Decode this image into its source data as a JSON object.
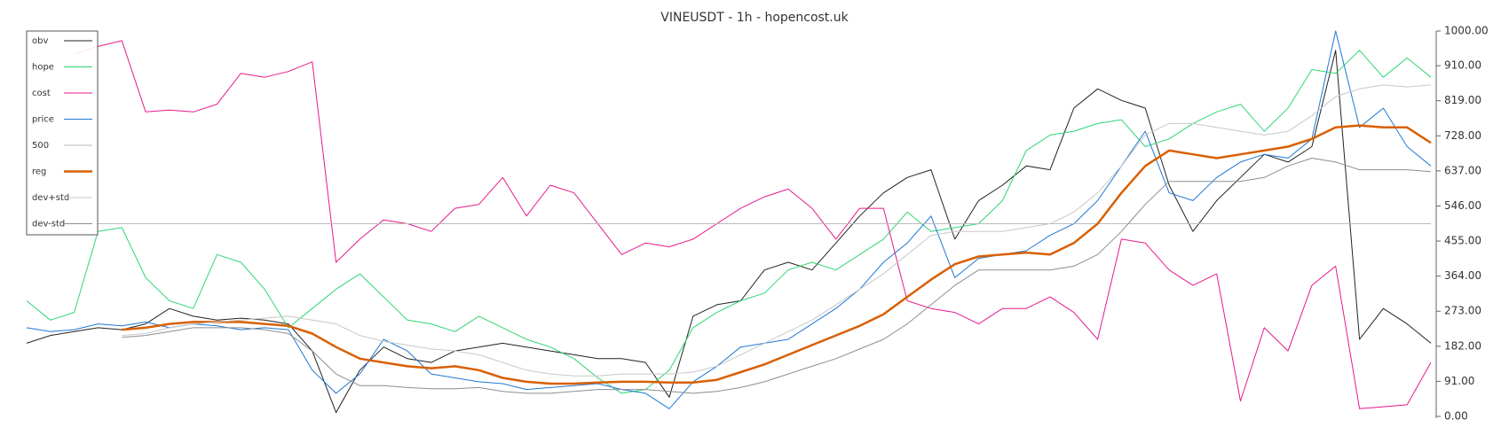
{
  "chart_data": {
    "type": "line",
    "title": "VINEUSDT - 1h - hopencost.uk",
    "ylim": [
      0,
      1000
    ],
    "yticks": [
      {
        "value": 0,
        "label": "0.00"
      },
      {
        "value": 91,
        "label": "91.00"
      },
      {
        "value": 182,
        "label": "182.00"
      },
      {
        "value": 273,
        "label": "273.00"
      },
      {
        "value": 364,
        "label": "364.00"
      },
      {
        "value": 455,
        "label": "455.00"
      },
      {
        "value": 546,
        "label": "546.00"
      },
      {
        "value": 637,
        "label": "637.00"
      },
      {
        "value": 728,
        "label": "728.00"
      },
      {
        "value": 819,
        "label": "819.00"
      },
      {
        "value": 910,
        "label": "910.00"
      },
      {
        "value": 1000,
        "label": "1000.00"
      }
    ],
    "grid": false,
    "legend": "upper left",
    "series": [
      {
        "name": "obv",
        "color": "#222222",
        "width": 1,
        "values": [
          190,
          210,
          220,
          230,
          225,
          240,
          280,
          260,
          250,
          255,
          250,
          240,
          170,
          10,
          120,
          180,
          150,
          140,
          170,
          180,
          190,
          180,
          170,
          160,
          150,
          150,
          140,
          50,
          260,
          290,
          300,
          380,
          400,
          380,
          450,
          520,
          580,
          620,
          640,
          460,
          560,
          600,
          650,
          640,
          800,
          850,
          820,
          800,
          600,
          480,
          560,
          620,
          680,
          660,
          700,
          950,
          200,
          280,
          240,
          190
        ]
      },
      {
        "name": "hope",
        "color": "#2fd675",
        "width": 1,
        "values": [
          300,
          250,
          270,
          480,
          490,
          360,
          300,
          280,
          420,
          400,
          330,
          230,
          280,
          330,
          370,
          310,
          250,
          240,
          220,
          260,
          230,
          200,
          180,
          150,
          100,
          60,
          70,
          120,
          230,
          270,
          300,
          320,
          380,
          400,
          380,
          420,
          460,
          530,
          480,
          490,
          500,
          560,
          690,
          730,
          740,
          760,
          770,
          700,
          720,
          760,
          790,
          810,
          740,
          800,
          900,
          890,
          950,
          880,
          930,
          880
        ]
      },
      {
        "name": "cost",
        "color": "#e6198a",
        "width": 1,
        "values": [
          null,
          null,
          940,
          960,
          975,
          790,
          795,
          790,
          810,
          890,
          880,
          895,
          920,
          400,
          460,
          510,
          500,
          480,
          540,
          550,
          620,
          520,
          600,
          580,
          500,
          420,
          450,
          440,
          460,
          500,
          540,
          570,
          590,
          540,
          460,
          540,
          540,
          300,
          280,
          270,
          240,
          280,
          280,
          310,
          270,
          200,
          460,
          450,
          380,
          340,
          370,
          40,
          230,
          170,
          340,
          390,
          20,
          25,
          30,
          140
        ]
      },
      {
        "name": "price",
        "color": "#1f78d4",
        "width": 1,
        "values": [
          230,
          220,
          225,
          240,
          235,
          245,
          230,
          240,
          235,
          225,
          230,
          225,
          120,
          60,
          110,
          200,
          170,
          110,
          100,
          90,
          85,
          70,
          75,
          80,
          85,
          70,
          60,
          20,
          90,
          130,
          180,
          190,
          200,
          240,
          280,
          330,
          400,
          450,
          520,
          360,
          410,
          420,
          430,
          470,
          500,
          560,
          650,
          740,
          580,
          560,
          620,
          660,
          680,
          670,
          720,
          1000,
          750,
          800,
          700,
          650
        ]
      },
      {
        "name": "500",
        "color": "#bbbbbb",
        "width": 1,
        "values": [
          500,
          500,
          500,
          500,
          500,
          500,
          500,
          500,
          500,
          500,
          500,
          500,
          500,
          500,
          500,
          500,
          500,
          500,
          500,
          500,
          500,
          500,
          500,
          500,
          500,
          500,
          500,
          500,
          500,
          500,
          500,
          500,
          500,
          500,
          500,
          500,
          500,
          500,
          500,
          500,
          500,
          500,
          500,
          500,
          500,
          500,
          500,
          500,
          500,
          500,
          500,
          500,
          500,
          500,
          500,
          500,
          500,
          500,
          500,
          500
        ]
      },
      {
        "name": "reg",
        "color": "#d95f02",
        "width": 2.5,
        "values": [
          null,
          null,
          null,
          null,
          225,
          230,
          240,
          245,
          245,
          245,
          240,
          235,
          215,
          180,
          150,
          140,
          130,
          125,
          130,
          120,
          100,
          90,
          85,
          85,
          88,
          90,
          90,
          88,
          88,
          95,
          115,
          135,
          160,
          185,
          210,
          235,
          265,
          310,
          355,
          395,
          415,
          420,
          425,
          420,
          450,
          500,
          580,
          650,
          690,
          680,
          670,
          680,
          690,
          700,
          720,
          750,
          755,
          750,
          750,
          710
        ]
      },
      {
        "name": "dev+std",
        "color": "#c8c8c8",
        "width": 1,
        "values": [
          null,
          null,
          null,
          null,
          210,
          215,
          230,
          240,
          245,
          250,
          255,
          260,
          250,
          240,
          210,
          195,
          185,
          175,
          170,
          160,
          140,
          120,
          110,
          105,
          105,
          110,
          110,
          110,
          115,
          130,
          160,
          190,
          220,
          250,
          290,
          330,
          370,
          420,
          470,
          480,
          480,
          480,
          490,
          500,
          530,
          580,
          650,
          730,
          760,
          760,
          750,
          740,
          730,
          740,
          780,
          830,
          850,
          860,
          855,
          860
        ]
      },
      {
        "name": "dev-std",
        "color": "#8a8f94",
        "width": 1,
        "values": [
          null,
          null,
          null,
          null,
          205,
          210,
          220,
          230,
          230,
          230,
          225,
          215,
          170,
          110,
          80,
          80,
          75,
          72,
          72,
          75,
          65,
          60,
          60,
          65,
          70,
          70,
          70,
          65,
          60,
          65,
          75,
          90,
          110,
          130,
          150,
          175,
          200,
          240,
          290,
          340,
          380,
          380,
          380,
          380,
          390,
          420,
          480,
          550,
          610,
          610,
          610,
          610,
          620,
          650,
          670,
          660,
          640,
          640,
          640,
          635
        ]
      }
    ]
  }
}
